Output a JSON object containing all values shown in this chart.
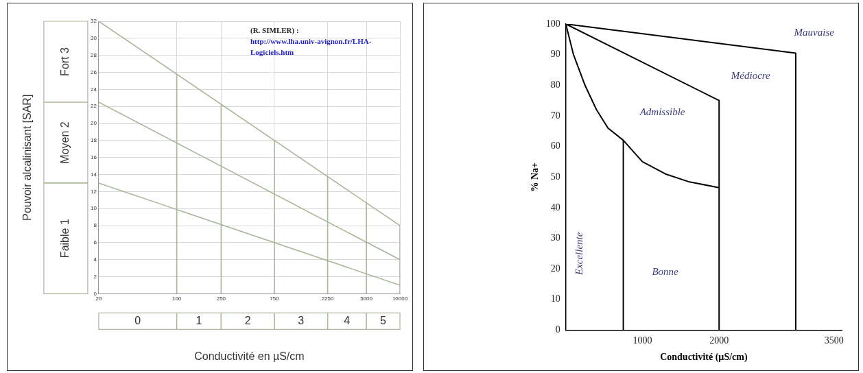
{
  "chart_data": [
    {
      "type": "line",
      "xlabel": "Conductivité en µS/cm",
      "ylabel": "Pouvoir alcalinisant [SAR]",
      "log": "x",
      "xlim": [
        20,
        10000
      ],
      "xticks": [
        20,
        100,
        250,
        750,
        2250,
        5000,
        10000
      ],
      "ylim": [
        0,
        32
      ],
      "yticks": [
        0,
        2,
        4,
        6,
        8,
        10,
        12,
        14,
        16,
        18,
        20,
        22,
        24,
        26,
        28,
        30,
        32
      ],
      "grid": true,
      "marker": "none",
      "legend": false,
      "series": [
        {
          "color": "#a9b79b",
          "x": [
            20,
            10000
          ],
          "values": [
            32,
            8
          ]
        },
        {
          "color": "#a9b79b",
          "x": [
            20,
            10000
          ],
          "values": [
            22.5,
            4
          ]
        },
        {
          "color": "#a9b79b",
          "x": [
            20,
            10000
          ],
          "values": [
            13,
            1
          ]
        },
        {
          "color": "#a9b79b",
          "x": [
            100,
            100
          ],
          "values": [
            0,
            25.8
          ]
        },
        {
          "color": "#a9b79b",
          "x": [
            250,
            250
          ],
          "values": [
            0,
            22.3
          ]
        },
        {
          "color": "#a9b79b",
          "x": [
            750,
            750
          ],
          "values": [
            0,
            18
          ]
        },
        {
          "color": "#a9b79b",
          "x": [
            2250,
            2250
          ],
          "values": [
            0,
            13.8
          ]
        },
        {
          "color": "#a9b79b",
          "x": [
            5000,
            5000
          ],
          "values": [
            0,
            10.7
          ]
        },
        {
          "color": "#a9b79b",
          "x": [
            10000,
            10000
          ],
          "values": [
            0,
            8
          ]
        }
      ],
      "annotations": [
        "Faible 1",
        "Moyen 2",
        "Fort 3",
        "0",
        "1",
        "2",
        "3",
        "4",
        "5",
        "(R. SIMLER) :",
        "http://www.lha.univ-avignon.fr/LHA-Logiciels.htm"
      ]
    },
    {
      "type": "line",
      "xlabel": "Conductivité (µS/cm)",
      "ylabel": "% Na+",
      "xlim": [
        0,
        3600
      ],
      "xticks": [
        1000,
        2000,
        3500
      ],
      "ylim": [
        0,
        100
      ],
      "yticks": [
        0,
        10,
        20,
        30,
        40,
        50,
        60,
        70,
        80,
        90,
        100
      ],
      "marker": "none",
      "legend": false,
      "series": [
        {
          "color": "#000000",
          "x": [
            0,
            100,
            250,
            400,
            550,
            750,
            750
          ],
          "values": [
            100,
            90,
            80,
            72,
            66,
            62,
            0
          ]
        },
        {
          "color": "#000000",
          "x": [
            750,
            1000,
            1300,
            1600,
            2000
          ],
          "values": [
            62,
            55,
            51,
            48.5,
            46.5
          ]
        },
        {
          "color": "#000000",
          "x": [
            0,
            2000,
            2000
          ],
          "values": [
            100,
            75,
            0
          ]
        },
        {
          "color": "#000000",
          "x": [
            0,
            3000,
            3000
          ],
          "values": [
            100,
            90.5,
            0
          ]
        }
      ],
      "annotations": [
        "Mauvaise",
        "Médiocre",
        "Admissible",
        "Excellente",
        "Bonne"
      ]
    }
  ]
}
